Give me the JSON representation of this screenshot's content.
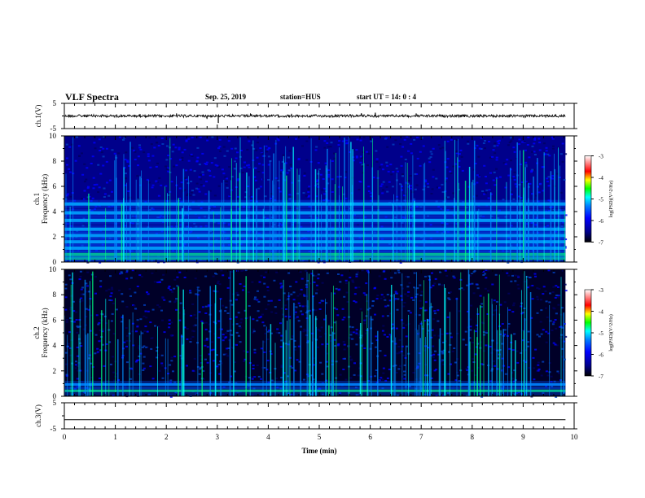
{
  "header": {
    "title": "VLF Spectra",
    "date": "Sep. 25, 2019",
    "station_label": "station=",
    "station": "HUS",
    "start_label": "start  UT =",
    "start_time": "14: 0  : 4"
  },
  "chart_data": [
    {
      "type": "line",
      "id": "ch1",
      "ylabel": "ch.1(V)",
      "ylim": [
        -5,
        5
      ],
      "yticks": [
        "5",
        "-5"
      ],
      "baseline": 0,
      "spikes": [
        {
          "x": 2.2,
          "y": 1.0
        },
        {
          "x": 3.02,
          "y": -2.8
        },
        {
          "x": 6.1,
          "y": 1.3
        }
      ]
    },
    {
      "type": "heatmap",
      "id": "ch1-spec",
      "ylabel_line1": "ch.1",
      "ylabel_line2": "Frequency  (kHz)",
      "ylim": [
        0,
        10
      ],
      "yticks": [
        "10",
        "8",
        "6",
        "4",
        "2",
        "0"
      ],
      "colorbar": {
        "label": "log(PSD)(V^2/Hz)",
        "ticks": [
          "-3",
          "-4",
          "-5",
          "-6",
          "-7"
        ],
        "range": [
          -7,
          -3
        ]
      },
      "bands_khz": [
        0.3,
        0.6,
        1.1,
        1.6,
        2.1,
        2.6,
        3.3,
        3.9,
        4.6
      ]
    },
    {
      "type": "heatmap",
      "id": "ch2-spec",
      "ylabel_line1": "ch.2",
      "ylabel_line2": "Frequency  (kHz)",
      "ylim": [
        0,
        10
      ],
      "yticks": [
        "10",
        "8",
        "6",
        "4",
        "2",
        "0"
      ],
      "colorbar": {
        "label": "log(PSD)(V^2/Hz)",
        "ticks": [
          "-3",
          "-4",
          "-5",
          "-6",
          "-7"
        ],
        "range": [
          -7,
          -3
        ]
      },
      "bands_khz": [
        0.4,
        0.9
      ]
    },
    {
      "type": "line",
      "id": "ch3",
      "ylabel": "ch.3(V)",
      "ylim": [
        -5,
        5
      ],
      "yticks": [
        "5",
        "-5"
      ],
      "baseline": -1.5,
      "spikes": []
    }
  ],
  "x_axis": {
    "label": "Time  (min)",
    "ticks": [
      "0",
      "1",
      "2",
      "3",
      "4",
      "5",
      "6",
      "7",
      "8",
      "9",
      "10"
    ],
    "xlim": [
      0,
      10
    ],
    "data_end": 9.83
  },
  "colors": {
    "jet": [
      "#000030",
      "#00008b",
      "#0000ff",
      "#0080ff",
      "#00ffff",
      "#00ff00",
      "#ffff00",
      "#ff8000",
      "#ff0000",
      "#ffffff"
    ]
  }
}
